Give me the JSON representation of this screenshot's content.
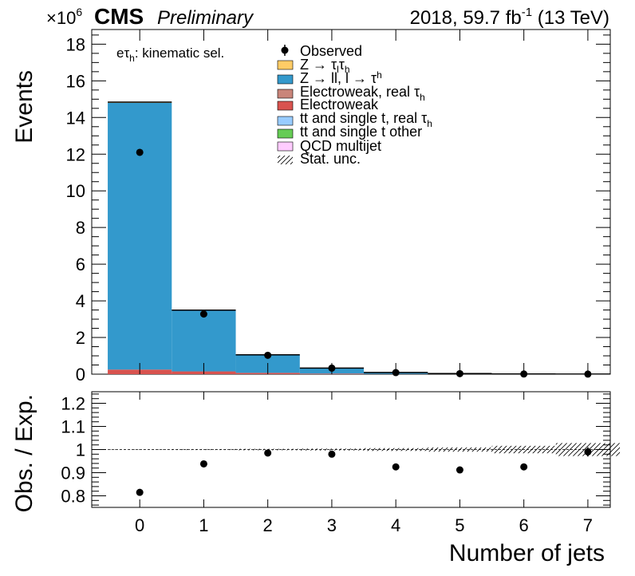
{
  "header": {
    "cms": "CMS",
    "preliminary": "Preliminary",
    "lumi_prefix": "2018, 59.7 fb",
    "lumi_exp": "-1",
    "lumi_suffix": " (13 TeV)",
    "multiplier_base": "×10",
    "multiplier_exp": "6"
  },
  "category": {
    "prefix": "eτ",
    "sub": "h",
    "suffix": ": kinematic sel."
  },
  "legend": {
    "observed": "Observed",
    "ztt_main": "Z → τ",
    "ztt_sub1": "l",
    "ztt_mid": "τ",
    "ztt_sub2": "h",
    "zll_main": "Z → ll, l → τ",
    "zll_sub": "h",
    "ewk_real_main": "Electroweak, real  τ",
    "ewk_real_sub": "h",
    "ewk": "Electroweak",
    "tt_real_main": "tt and single t, real  τ",
    "tt_real_sub": "h",
    "tt_other": "tt and single t other",
    "qcd": "QCD multijet",
    "stat": "Stat. unc."
  },
  "colors": {
    "ztt": "#ffcc66",
    "zll": "#3399cc",
    "ewk_real": "#c9857a",
    "ewk": "#d9534f",
    "tt_real": "#99ccff",
    "tt_other": "#66cc55",
    "qcd": "#ffccff"
  },
  "chart_data": [
    {
      "type": "bar",
      "stacked": true,
      "categories": [
        "0",
        "1",
        "2",
        "3",
        "4",
        "5",
        "6",
        "7"
      ],
      "ylabel": "Events",
      "ylim": [
        0,
        18.8
      ],
      "yticks": [
        "0",
        "2",
        "4",
        "6",
        "8",
        "10",
        "12",
        "14",
        "16",
        "18"
      ],
      "series": [
        {
          "name": "Electroweak",
          "color": "#d9534f",
          "values": [
            0.25,
            0.15,
            0.07,
            0.03,
            0.01,
            0.005,
            0.002,
            0.001
          ]
        },
        {
          "name": "Z → ll, l → τh",
          "color": "#3399cc",
          "values": [
            14.55,
            3.33,
            0.98,
            0.3,
            0.08,
            0.025,
            0.008,
            0.002
          ]
        },
        {
          "name": "Z → τlτh",
          "color": "#ffcc66",
          "values": [
            0.04,
            0.01,
            0.005,
            0.002,
            0.001,
            0.0005,
            0.0002,
            0.0001
          ]
        }
      ],
      "observed": [
        12.1,
        3.28,
        1.03,
        0.33,
        0.085,
        0.028,
        0.009,
        0.003
      ]
    },
    {
      "type": "scatter",
      "categories": [
        "0",
        "1",
        "2",
        "3",
        "4",
        "5",
        "6",
        "7"
      ],
      "xlabel": "Number of jets",
      "ylabel": "Obs. / Exp.",
      "ylim": [
        0.75,
        1.25
      ],
      "yticks": [
        "0.8",
        "0.9",
        "1",
        "1.1",
        "1.2"
      ],
      "values": [
        0.815,
        0.938,
        0.985,
        0.98,
        0.925,
        0.912,
        0.925,
        0.99
      ],
      "errors": [
        0.002,
        0.003,
        0.004,
        0.005,
        0.006,
        0.008,
        0.01,
        0.02
      ],
      "stat_unc": [
        0.001,
        0.002,
        0.003,
        0.004,
        0.006,
        0.009,
        0.016,
        0.028
      ]
    }
  ]
}
